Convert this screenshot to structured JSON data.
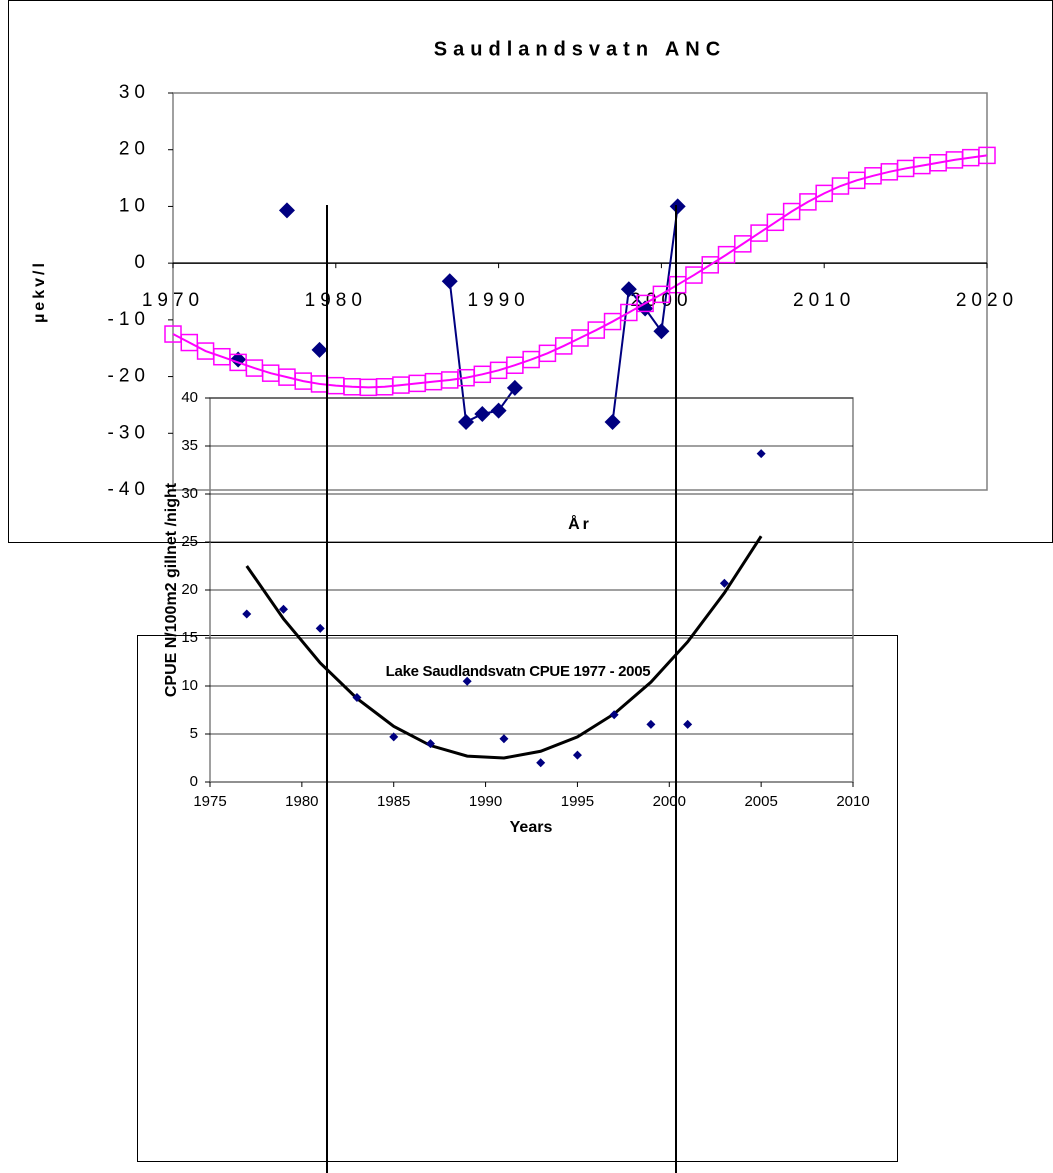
{
  "chart_data": [
    {
      "type": "line",
      "title": "Saudlandsvatn ANC",
      "y_label": "µekv/l",
      "x_label": "År",
      "xlim": [
        1970,
        2020
      ],
      "xticks": [
        1970,
        1980,
        1990,
        2000,
        2010,
        2020
      ],
      "ylim": [
        -40,
        30
      ],
      "yticks": [
        -40,
        -30,
        -20,
        -10,
        0,
        10,
        20,
        30
      ],
      "grid": false,
      "series": [
        {
          "color": "#000080",
          "marker": "diamond",
          "x": [
            1974,
            1975,
            1977,
            1978,
            1979,
            1980,
            1987,
            1988,
            1989,
            1990,
            1991,
            1992,
            1997,
            1998,
            1999,
            2000,
            2001
          ],
          "values": [
            -17,
            null,
            9.3,
            null,
            -15.3,
            null,
            -3.2,
            -28,
            -26.6,
            -26,
            -22,
            null,
            -28,
            -4.6,
            -8,
            -12,
            10
          ]
        },
        {
          "color": "#FF00FF",
          "marker": "square",
          "x": [
            1970,
            1971,
            1972,
            1973,
            1974,
            1975,
            1976,
            1977,
            1978,
            1979,
            1980,
            1981,
            1982,
            1983,
            1984,
            1985,
            1986,
            1987,
            1988,
            1989,
            1990,
            1991,
            1992,
            1993,
            1994,
            1995,
            1996,
            1997,
            1998,
            1999,
            2000,
            2001,
            2002,
            2003,
            2004,
            2005,
            2006,
            2007,
            2008,
            2009,
            2010,
            2011,
            2012,
            2013,
            2014,
            2015,
            2016,
            2017,
            2018,
            2019,
            2020
          ],
          "values": [
            -12.5,
            -14,
            -15.5,
            -16.5,
            -17.5,
            -18.5,
            -19.4,
            -20.1,
            -20.8,
            -21.3,
            -21.6,
            -21.8,
            -21.9,
            -21.8,
            -21.5,
            -21.2,
            -20.9,
            -20.6,
            -20.2,
            -19.6,
            -18.9,
            -18,
            -17,
            -15.9,
            -14.6,
            -13.2,
            -11.8,
            -10.3,
            -8.7,
            -7.1,
            -5.5,
            -3.8,
            -2.1,
            -0.3,
            1.5,
            3.4,
            5.3,
            7.2,
            9.1,
            10.8,
            12.3,
            13.6,
            14.6,
            15.4,
            16.1,
            16.7,
            17.2,
            17.7,
            18.2,
            18.6,
            19
          ]
        }
      ]
    },
    {
      "type": "scatter",
      "title": "Lake Saudlandsvatn CPUE 1977 - 2005",
      "y_label": "CPUE N/100m2 gillnet /night",
      "x_label": "Years",
      "xlim": [
        1975,
        2010
      ],
      "xticks": [
        1975,
        1980,
        1985,
        1990,
        1995,
        2000,
        2005,
        2010
      ],
      "ylim": [
        0,
        40
      ],
      "yticks": [
        0,
        5,
        10,
        15,
        20,
        25,
        30,
        35,
        40
      ],
      "grid": true,
      "series": [
        {
          "color": "#000080",
          "marker": "diamond",
          "x": [
            1977,
            1979,
            1981,
            1983,
            1985,
            1987,
            1989,
            1991,
            1993,
            1995,
            1997,
            1999,
            2001,
            2003,
            2005
          ],
          "values": [
            17.5,
            18,
            16,
            8.8,
            4.7,
            4,
            10.5,
            4.5,
            2,
            2.8,
            7,
            6,
            6,
            20.7,
            34.2
          ]
        }
      ],
      "trendline": {
        "color": "#000000",
        "x": [
          1977,
          1979,
          1981,
          1983,
          1985,
          1987,
          1989,
          1991,
          1993,
          1995,
          1997,
          1999,
          2001,
          2003,
          2005
        ],
        "values": [
          22.5,
          17,
          12.4,
          8.7,
          5.8,
          3.8,
          2.7,
          2.5,
          3.2,
          4.7,
          7.1,
          10.4,
          14.6,
          19.7,
          25.6
        ]
      }
    }
  ]
}
